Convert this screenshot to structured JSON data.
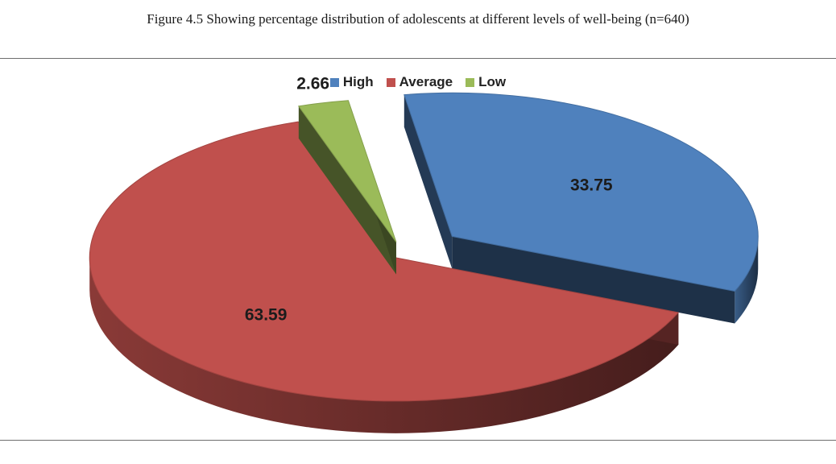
{
  "caption": "Figure 4.5 Showing percentage distribution of adolescents at different levels of well-being (n=640)",
  "chart_data": {
    "type": "pie",
    "categories": [
      "High",
      "Average",
      "Low"
    ],
    "values": [
      33.75,
      63.59,
      2.66
    ],
    "data_labels": [
      "33.75",
      "63.59",
      "2.66"
    ],
    "colors": [
      "#4f81bd",
      "#c0504d",
      "#9bbb59"
    ],
    "exploded": true,
    "three_d": true,
    "legend": "top"
  }
}
